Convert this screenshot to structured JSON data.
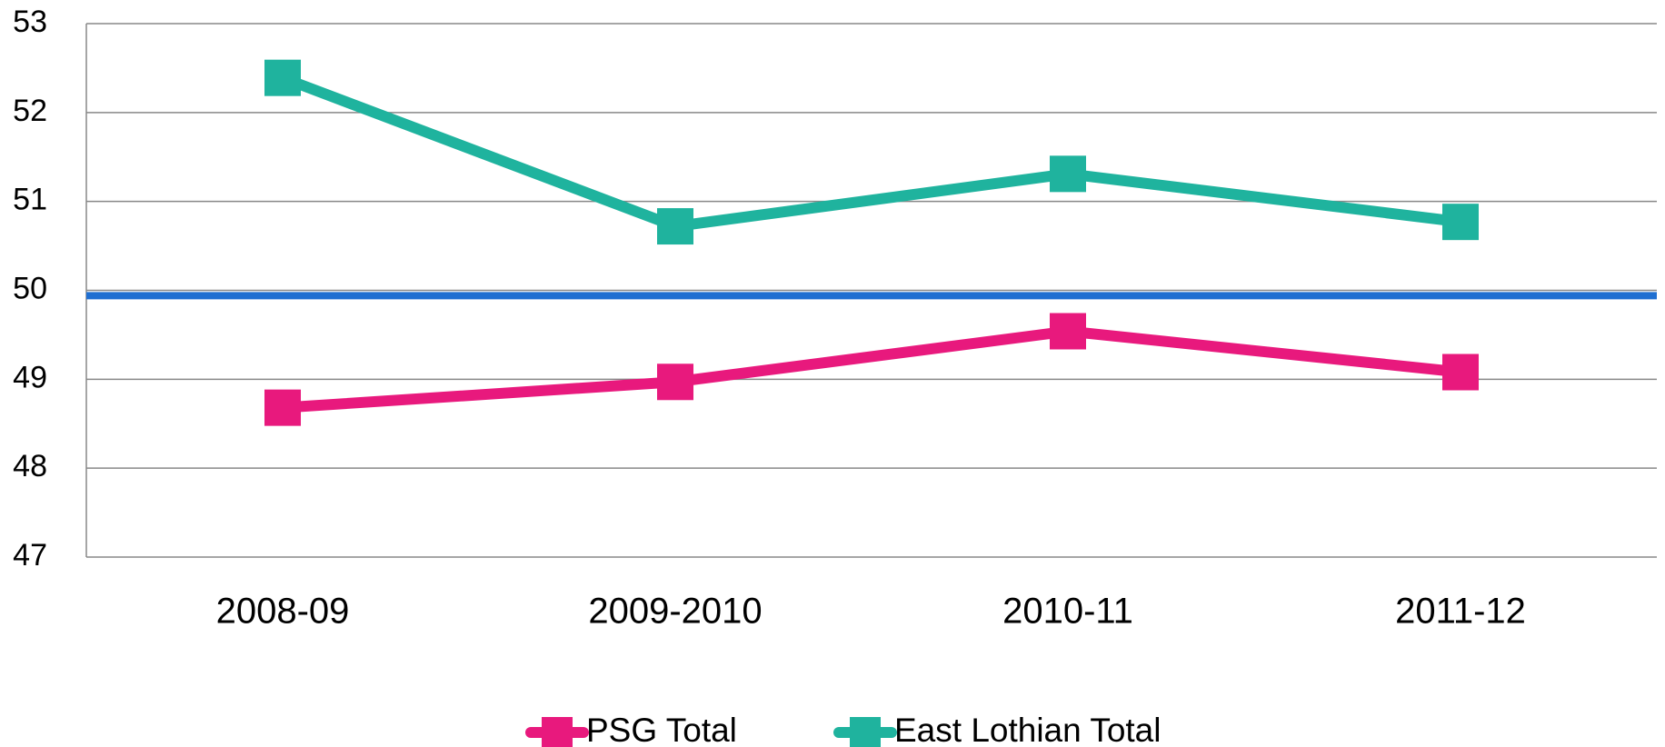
{
  "chart_data": {
    "type": "line",
    "categories": [
      "2008-09",
      "2009-2010",
      "2010-11",
      "2011-12"
    ],
    "series": [
      {
        "name": "PSG Total",
        "color": "#e8197d",
        "values": [
          48.68,
          48.97,
          49.54,
          49.08
        ]
      },
      {
        "name": "East Lothian Total",
        "color": "#1fb39e",
        "values": [
          52.39,
          50.72,
          51.31,
          50.77
        ]
      }
    ],
    "reference_line": {
      "value": 49.94,
      "color": "#1f6fd1"
    },
    "ylim": [
      47,
      53
    ],
    "yticks": [
      47,
      48,
      49,
      50,
      51,
      52,
      53
    ],
    "grid": true,
    "legend": "bottom"
  }
}
